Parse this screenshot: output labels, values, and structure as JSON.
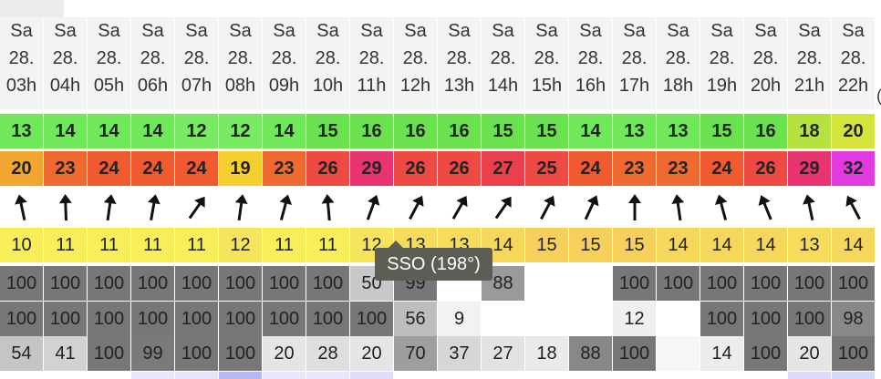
{
  "tooltip": "SSO (198°)",
  "edge_partial": "(",
  "columns": [
    {
      "day": "Sa",
      "date": "28.",
      "hour": "03h",
      "c1": "13",
      "c2": "20",
      "w": "10",
      "s1": "100",
      "s2": "100",
      "s3": "54",
      "rot": -12
    },
    {
      "day": "Sa",
      "date": "28.",
      "hour": "04h",
      "c1": "14",
      "c2": "23",
      "w": "11",
      "s1": "100",
      "s2": "100",
      "s3": "41",
      "rot": -2
    },
    {
      "day": "Sa",
      "date": "28.",
      "hour": "05h",
      "c1": "14",
      "c2": "24",
      "w": "11",
      "s1": "100",
      "s2": "100",
      "s3": "100",
      "rot": 8
    },
    {
      "day": "Sa",
      "date": "28.",
      "hour": "06h",
      "c1": "14",
      "c2": "24",
      "w": "11",
      "s1": "100",
      "s2": "100",
      "s3": "99",
      "rot": 10
    },
    {
      "day": "Sa",
      "date": "28.",
      "hour": "07h",
      "c1": "12",
      "c2": "24",
      "w": "11",
      "s1": "100",
      "s2": "100",
      "s3": "100",
      "rot": 35
    },
    {
      "day": "Sa",
      "date": "28.",
      "hour": "08h",
      "c1": "12",
      "c2": "19",
      "w": "12",
      "s1": "100",
      "s2": "100",
      "s3": "100",
      "rot": 8
    },
    {
      "day": "Sa",
      "date": "28.",
      "hour": "09h",
      "c1": "14",
      "c2": "23",
      "w": "11",
      "s1": "100",
      "s2": "100",
      "s3": "20",
      "rot": 15
    },
    {
      "day": "Sa",
      "date": "28.",
      "hour": "10h",
      "c1": "15",
      "c2": "26",
      "w": "11",
      "s1": "100",
      "s2": "100",
      "s3": "28",
      "rot": -5
    },
    {
      "day": "Sa",
      "date": "28.",
      "hour": "11h",
      "c1": "16",
      "c2": "29",
      "w": "12",
      "s1": "50",
      "s2": "100",
      "s3": "20",
      "rot": 20
    },
    {
      "day": "Sa",
      "date": "28.",
      "hour": "12h",
      "c1": "16",
      "c2": "26",
      "w": "13",
      "s1": "99",
      "s2": "56",
      "s3": "70",
      "rot": 28
    },
    {
      "day": "Sa",
      "date": "28.",
      "hour": "13h",
      "c1": "16",
      "c2": "26",
      "w": "13",
      "s1": "",
      "s2": "9",
      "s3": "37",
      "rot": 30
    },
    {
      "day": "Sa",
      "date": "28.",
      "hour": "14h",
      "c1": "15",
      "c2": "27",
      "w": "14",
      "s1": "88",
      "s2": "",
      "s3": "27",
      "rot": 35
    },
    {
      "day": "Sa",
      "date": "28.",
      "hour": "15h",
      "c1": "15",
      "c2": "25",
      "w": "15",
      "s1": "",
      "s2": "",
      "s3": "18",
      "rot": 28
    },
    {
      "day": "Sa",
      "date": "28.",
      "hour": "16h",
      "c1": "14",
      "c2": "24",
      "w": "15",
      "s1": "",
      "s2": "",
      "s3": "88",
      "rot": 25
    },
    {
      "day": "Sa",
      "date": "28.",
      "hour": "17h",
      "c1": "13",
      "c2": "23",
      "w": "15",
      "s1": "100",
      "s2": "12",
      "s3": "100",
      "rot": 0
    },
    {
      "day": "Sa",
      "date": "28.",
      "hour": "18h",
      "c1": "13",
      "c2": "23",
      "w": "14",
      "s1": "100",
      "s2": "",
      "s3": "",
      "rot": -8
    },
    {
      "day": "Sa",
      "date": "28.",
      "hour": "19h",
      "c1": "15",
      "c2": "24",
      "w": "14",
      "s1": "100",
      "s2": "100",
      "s3": "14",
      "rot": -15
    },
    {
      "day": "Sa",
      "date": "28.",
      "hour": "20h",
      "c1": "16",
      "c2": "26",
      "w": "14",
      "s1": "100",
      "s2": "100",
      "s3": "100",
      "rot": -22
    },
    {
      "day": "Sa",
      "date": "28.",
      "hour": "21h",
      "c1": "18",
      "c2": "29",
      "w": "13",
      "s1": "100",
      "s2": "100",
      "s3": "20",
      "rot": -12
    },
    {
      "day": "Sa",
      "date": "28.",
      "hour": "22h",
      "c1": "20",
      "c2": "32",
      "w": "14",
      "s1": "100",
      "s2": "98",
      "s3": "100",
      "rot": -28
    }
  ],
  "colors": {
    "c1": [
      "#6fe85a",
      "#6fe85a",
      "#6fe85a",
      "#6fe85a",
      "#78ea62",
      "#78ea62",
      "#6fe85a",
      "#69e24e",
      "#69e24e",
      "#69e24e",
      "#69e24e",
      "#69e24e",
      "#69e24e",
      "#6fe85a",
      "#6fe85a",
      "#6fe85a",
      "#69e24e",
      "#69e24e",
      "#b5e23e",
      "#d4e43c"
    ],
    "c2": [
      "#f2a630",
      "#ef6a30",
      "#ef5a30",
      "#ef5a30",
      "#ef5a30",
      "#f5ce30",
      "#ef6a30",
      "#ec4a42",
      "#e83572",
      "#ec4a42",
      "#ec4a42",
      "#ea404e",
      "#ec4a42",
      "#ef5a30",
      "#ef6a30",
      "#ef6a30",
      "#ef5a30",
      "#ec4a42",
      "#e83572",
      "#e23ae0"
    ],
    "w": [
      "#f7ee5a",
      "#f7ee5a",
      "#f7ee5a",
      "#f7ee5a",
      "#f7ee5a",
      "#f6e45a",
      "#f7ee5a",
      "#f7ee5a",
      "#f6e45a",
      "#f5dc5a",
      "#f5dc5a",
      "#f5d85a",
      "#f5d05a",
      "#f5d05a",
      "#f5d05a",
      "#f5d85a",
      "#f5d85a",
      "#f5d85a",
      "#f5dc5a",
      "#f5d85a"
    ],
    "s1": [
      "#777777",
      "#777777",
      "#777777",
      "#777777",
      "#777777",
      "#777777",
      "#777777",
      "#777777",
      "#c8c8c8",
      "#777777",
      "#ffffff",
      "#9a9a9a",
      "#ffffff",
      "#ffffff",
      "#777777",
      "#777777",
      "#777777",
      "#777777",
      "#777777",
      "#777777"
    ],
    "s2": [
      "#777777",
      "#777777",
      "#777777",
      "#777777",
      "#777777",
      "#777777",
      "#777777",
      "#777777",
      "#777777",
      "#bdbdbd",
      "#f2f2f2",
      "#ffffff",
      "#ffffff",
      "#ffffff",
      "#efefef",
      "#ffffff",
      "#777777",
      "#777777",
      "#777777",
      "#888888"
    ],
    "s3": [
      "#c5c5c5",
      "#d2d2d2",
      "#777777",
      "#7a7a7a",
      "#777777",
      "#777777",
      "#e5e5e5",
      "#dedede",
      "#e5e5e5",
      "#9e9e9e",
      "#d6d6d6",
      "#e2e2e2",
      "#eaeaea",
      "#888888",
      "#777777",
      "#f7f7f7",
      "#ececec",
      "#777777",
      "#e5e5e5",
      "#777777"
    ],
    "strip": [
      "#ffffff",
      "#ffffff",
      "#ffffff",
      "#e8e8fb",
      "#e4e4fa",
      "#b8b8f0",
      "#e8e8fb",
      "#e8e8fb",
      "#dedef8",
      "#ffffff",
      "#ffffff",
      "#ffffff",
      "#ffffff",
      "#ffffff",
      "#ffffff",
      "#ffffff",
      "#ffffff",
      "#ffffff",
      "#dcdcf8",
      "#d8d8f7"
    ]
  }
}
